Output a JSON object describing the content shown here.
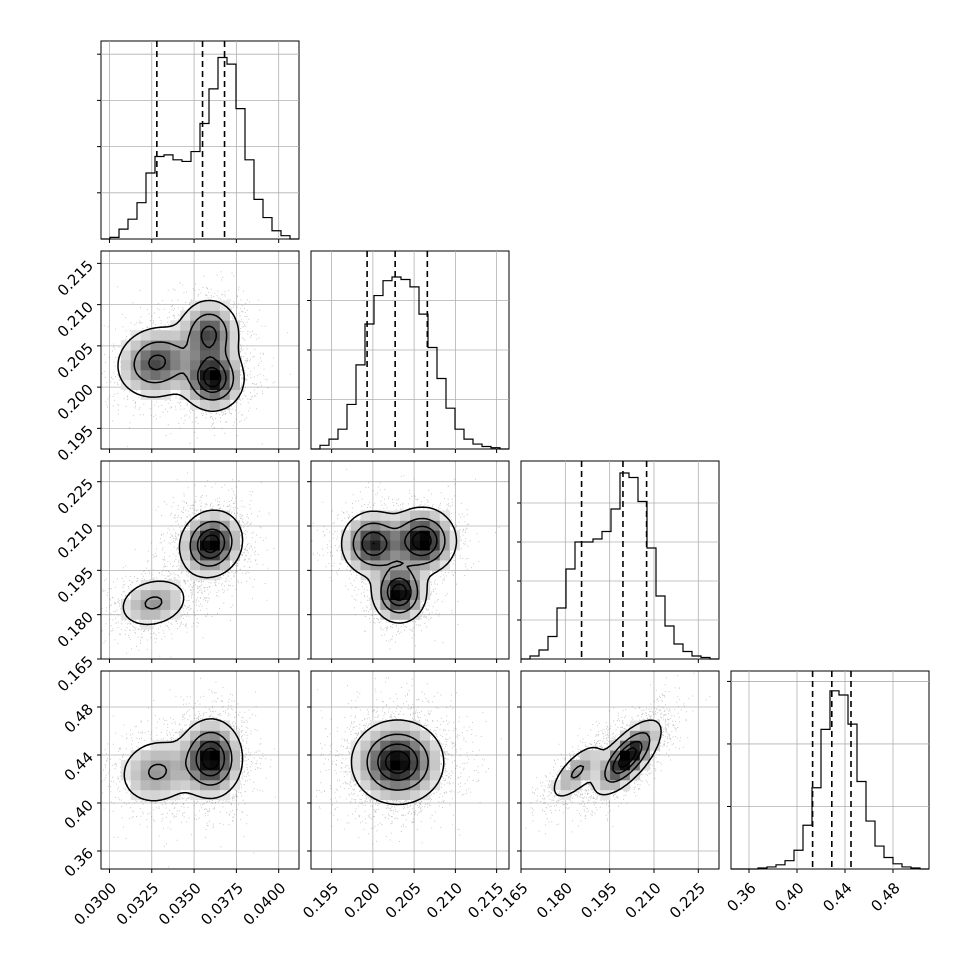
{
  "chart_data": {
    "type": "corner",
    "title": "",
    "parameters": [
      {
        "name": "",
        "range": [
          0.0295,
          0.0412
        ],
        "ticks": [
          0.03,
          0.0325,
          0.035,
          0.0375,
          0.04
        ],
        "tick_labels": [
          "0.0300",
          "0.0325",
          "0.0350",
          "0.0375",
          "0.0400"
        ],
        "quantiles": [
          0.0328,
          0.0355,
          0.0368
        ],
        "hist_bins": [
          0.0295,
          0.0412
        ],
        "hist_counts": [
          0,
          1,
          6,
          12,
          22,
          40,
          50,
          51,
          48,
          47,
          53,
          70,
          91,
          110,
          106,
          79,
          48,
          24,
          13,
          5,
          2,
          0
        ],
        "hist_ymax": 120,
        "hist_grid": [
          28,
          64
        ],
        "hist_grid_count": 4,
        "hist_grid_step": 28,
        "components": [
          {
            "mean": 0.0328,
            "sd": 0.0012,
            "w": 0.3
          },
          {
            "mean": 0.0359,
            "sd": 0.0009,
            "w": 0.7
          }
        ]
      },
      {
        "name": "",
        "range": [
          0.1925,
          0.2165
        ],
        "ticks": [
          0.195,
          0.2,
          0.205,
          0.21,
          0.215
        ],
        "tick_labels": [
          "0.195",
          "0.200",
          "0.205",
          "0.210",
          "0.215"
        ],
        "quantiles": [
          0.1993,
          0.2027,
          0.2066
        ],
        "hist_counts": [
          0,
          3,
          8,
          16,
          36,
          68,
          101,
          124,
          136,
          139,
          137,
          131,
          109,
          82,
          57,
          33,
          16,
          8,
          4,
          2,
          1,
          0
        ],
        "hist_ymax": 160,
        "hist_grid": [
          40,
          80
        ],
        "hist_grid_count": 4,
        "hist_grid_step": 40
      },
      {
        "name": "",
        "range": [
          0.165,
          0.232
        ],
        "ticks": [
          0.165,
          0.18,
          0.195,
          0.21,
          0.225
        ],
        "tick_labels": [
          "0.165",
          "0.180",
          "0.195",
          "0.210",
          "0.225"
        ],
        "quantiles": [
          0.1855,
          0.1995,
          0.2075
        ],
        "hist_counts": [
          0,
          2,
          6,
          15,
          34,
          60,
          78,
          78,
          80,
          85,
          100,
          124,
          121,
          105,
          74,
          42,
          22,
          10,
          5,
          2,
          1,
          0
        ],
        "hist_ymax": 132,
        "hist_grid": [
          33,
          66
        ],
        "hist_grid_count": 4,
        "hist_grid_step": 26
      },
      {
        "name": "",
        "range": [
          0.345,
          0.51
        ],
        "ticks": [
          0.36,
          0.4,
          0.44,
          0.48
        ],
        "tick_labels": [
          "0.36",
          "0.40",
          "0.44",
          "0.48"
        ],
        "quantiles": [
          0.413,
          0.429,
          0.445
        ],
        "hist_counts": [
          0,
          0,
          0,
          1,
          2,
          4,
          8,
          18,
          42,
          78,
          134,
          171,
          167,
          139,
          84,
          46,
          22,
          11,
          5,
          2,
          1,
          0
        ],
        "hist_ymax": 190,
        "hist_grid": [
          63,
          126
        ],
        "hist_grid_count": 3,
        "hist_grid_step": 60
      }
    ],
    "pairs": [
      {
        "row": 1,
        "col": 0,
        "corr": 0.0,
        "modes": [
          {
            "x": 0.0328,
            "y": 0.203,
            "sx": 0.0012,
            "sy": 0.0022,
            "r": 0.1,
            "w": 0.3
          },
          {
            "x": 0.0361,
            "y": 0.201,
            "sx": 0.0009,
            "sy": 0.0019,
            "r": 0.0,
            "w": 0.4
          },
          {
            "x": 0.0359,
            "y": 0.2065,
            "sx": 0.0009,
            "sy": 0.0021,
            "r": 0.0,
            "w": 0.3
          }
        ]
      },
      {
        "row": 2,
        "col": 0,
        "corr": 0.4,
        "modes": [
          {
            "x": 0.0326,
            "y": 0.184,
            "sx": 0.0011,
            "sy": 0.0045,
            "r": 0.2,
            "w": 0.3
          },
          {
            "x": 0.036,
            "y": 0.204,
            "sx": 0.0009,
            "sy": 0.0055,
            "r": 0.1,
            "w": 0.7
          }
        ]
      },
      {
        "row": 2,
        "col": 1,
        "corr": 0.0,
        "modes": [
          {
            "x": 0.2,
            "y": 0.204,
            "sx": 0.0019,
            "sy": 0.0055,
            "r": 0.0,
            "w": 0.3
          },
          {
            "x": 0.2032,
            "y": 0.1875,
            "sx": 0.0016,
            "sy": 0.005,
            "r": 0.0,
            "w": 0.35
          },
          {
            "x": 0.206,
            "y": 0.205,
            "sx": 0.002,
            "sy": 0.0055,
            "r": 0.0,
            "w": 0.35
          }
        ]
      },
      {
        "row": 3,
        "col": 0,
        "corr": 0.1,
        "modes": [
          {
            "x": 0.0328,
            "y": 0.426,
            "sx": 0.0012,
            "sy": 0.015,
            "r": 0.1,
            "w": 0.3
          },
          {
            "x": 0.036,
            "y": 0.437,
            "sx": 0.0009,
            "sy": 0.016,
            "r": 0.0,
            "w": 0.7
          }
        ]
      },
      {
        "row": 3,
        "col": 1,
        "corr": 0.0,
        "modes": [
          {
            "x": 0.203,
            "y": 0.434,
            "sx": 0.0027,
            "sy": 0.017,
            "r": 0.0,
            "w": 1.0
          }
        ]
      },
      {
        "row": 3,
        "col": 2,
        "corr": 0.8,
        "modes": [
          {
            "x": 0.184,
            "y": 0.426,
            "sx": 0.0048,
            "sy": 0.0125,
            "r": 0.7,
            "w": 0.3
          },
          {
            "x": 0.201,
            "y": 0.438,
            "sx": 0.0055,
            "sy": 0.015,
            "r": 0.7,
            "w": 0.7
          }
        ]
      }
    ],
    "contour_levels": [
      0.118,
      0.393,
      0.675,
      0.865
    ],
    "grid": true,
    "legend": "none"
  }
}
